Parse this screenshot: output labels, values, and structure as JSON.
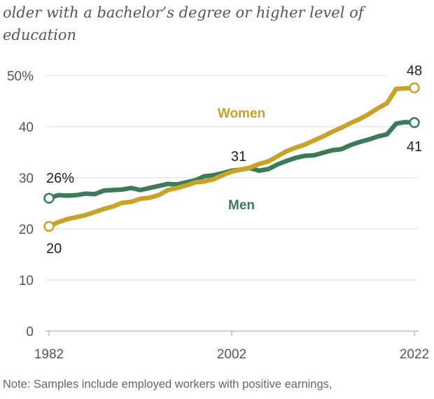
{
  "subtitle": "older with a bachelor’s degree or higher level of education",
  "note": "Note: Samples include employed workers with positive earnings,",
  "chart_data": {
    "type": "line",
    "x": [
      1982,
      1983,
      1984,
      1985,
      1986,
      1987,
      1988,
      1989,
      1990,
      1991,
      1992,
      1993,
      1994,
      1995,
      1996,
      1997,
      1998,
      1999,
      2000,
      2001,
      2002,
      2003,
      2004,
      2005,
      2006,
      2007,
      2008,
      2009,
      2010,
      2011,
      2012,
      2013,
      2014,
      2015,
      2016,
      2017,
      2018,
      2019,
      2020,
      2021,
      2022
    ],
    "xticks": [
      "1982",
      "2002",
      "2022"
    ],
    "yticks": [
      "0",
      "10",
      "20",
      "30",
      "40",
      "50%"
    ],
    "ylim": [
      0,
      50
    ],
    "grid": true,
    "series": [
      {
        "name": "Women",
        "color": "#c9a227",
        "values": [
          20.5,
          21.3,
          21.9,
          22.3,
          22.7,
          23.3,
          23.9,
          24.4,
          25.1,
          25.3,
          25.9,
          26.1,
          26.6,
          27.6,
          28.0,
          28.5,
          29.1,
          29.3,
          29.7,
          30.5,
          31.2,
          31.6,
          32.0,
          32.7,
          33.2,
          34.2,
          35.2,
          35.9,
          36.5,
          37.3,
          38.1,
          39.0,
          39.8,
          40.7,
          41.5,
          42.5,
          43.6,
          44.6,
          47.4,
          47.5,
          47.6
        ]
      },
      {
        "name": "Men",
        "color": "#3d7a5a",
        "values": [
          26.0,
          26.6,
          26.5,
          26.6,
          26.9,
          26.8,
          27.5,
          27.6,
          27.7,
          28.0,
          27.6,
          28.0,
          28.4,
          28.8,
          28.7,
          29.1,
          29.5,
          30.3,
          30.5,
          30.9,
          31.4,
          31.6,
          31.9,
          31.4,
          31.7,
          32.6,
          33.3,
          33.9,
          34.3,
          34.4,
          34.9,
          35.4,
          35.6,
          36.4,
          37.0,
          37.5,
          38.1,
          38.5,
          40.6,
          40.9,
          40.8
        ]
      }
    ],
    "annotations": [
      {
        "text": "26%",
        "series": "Men",
        "index": 0
      },
      {
        "text": "20",
        "series": "Women",
        "index": 0
      },
      {
        "text": "31",
        "series": "Women",
        "index": 20
      },
      {
        "text": "48",
        "series": "Women",
        "index": 40
      },
      {
        "text": "41",
        "series": "Men",
        "index": 40
      }
    ]
  }
}
